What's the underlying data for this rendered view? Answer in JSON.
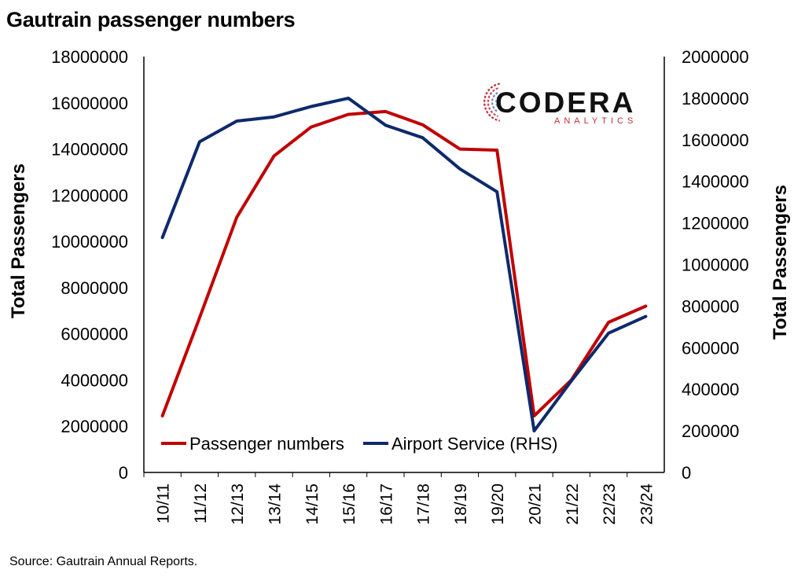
{
  "title": "Gautrain passenger numbers",
  "source": "Source: Gautrain Annual Reports.",
  "logo": {
    "main": "CODERA",
    "sub": "ANALYTICS"
  },
  "colors": {
    "passenger": "#c00000",
    "airport": "#0d2a6b"
  },
  "chart_data": {
    "type": "line",
    "title": "Gautrain passenger numbers",
    "xlabel": "",
    "ylabel": "Total Passengers",
    "y2label": "Total Passengers",
    "ylim": [
      0,
      18000000
    ],
    "y2lim": [
      0,
      2000000
    ],
    "yticks": [
      "0",
      "2000000",
      "4000000",
      "6000000",
      "8000000",
      "10000000",
      "12000000",
      "14000000",
      "16000000",
      "18000000"
    ],
    "y2ticks": [
      "0",
      "200000",
      "400000",
      "600000",
      "800000",
      "1000000",
      "1200000",
      "1400000",
      "1600000",
      "1800000",
      "2000000"
    ],
    "categories": [
      "10/11",
      "11/12",
      "12/13",
      "13/14",
      "14/15",
      "15/16",
      "16/17",
      "17/18",
      "18/19",
      "19/20",
      "20/21",
      "21/22",
      "22/23",
      "23/24"
    ],
    "series": [
      {
        "name": "Passenger numbers",
        "axis": "left",
        "color": "#c00000",
        "values": [
          2450000,
          6700000,
          11050000,
          13700000,
          14950000,
          15500000,
          15620000,
          15050000,
          14000000,
          13950000,
          2450000,
          4000000,
          6500000,
          7200000
        ]
      },
      {
        "name": "Airport Service (RHS)",
        "axis": "right",
        "color": "#0d2a6b",
        "values": [
          1130000,
          1590000,
          1690000,
          1710000,
          1760000,
          1800000,
          1670000,
          1610000,
          1460000,
          1350000,
          200000,
          440000,
          670000,
          750000
        ]
      }
    ],
    "legend": "bottom-left inside",
    "grid": false
  }
}
